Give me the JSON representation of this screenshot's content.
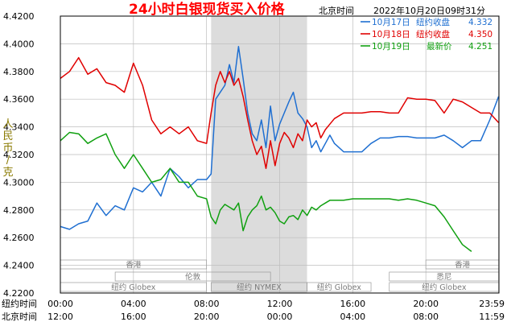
{
  "colors": {
    "series_1017": "#1f6fd1",
    "series_1018": "#e00000",
    "series_1019": "#10a010",
    "axis": "#000000",
    "grid": "#bdbdbd",
    "shade": "#dcdcdc",
    "title": "#ff0000",
    "ylabel": "#8a7a00"
  },
  "header": {
    "title": "24小时白银现货买入价格",
    "timezone": "北京时间",
    "timestamp": "2022年10月20日09时31分"
  },
  "legend": [
    {
      "date": "10月17日",
      "label": "纽约收盘",
      "value": "4.332"
    },
    {
      "date": "10月18日",
      "label": "纽约收盘",
      "value": "4.350"
    },
    {
      "date": "10月19日",
      "label": "最新价",
      "value": "4.251"
    }
  ],
  "sessions": [
    {
      "label": "香港",
      "start": 0,
      "end": 8.0
    },
    {
      "label": "伦敦",
      "start": 3.0,
      "end": 11.5
    },
    {
      "label": "纽约 Globex",
      "start": 0,
      "end": 8.0
    },
    {
      "label": "纽约 NYMEX",
      "start": 8.25,
      "end": 13.5
    },
    {
      "label": "纽约 Globex",
      "start": 13.5,
      "end": 17.0
    },
    {
      "label": "香港",
      "start": 20.0,
      "end": 24.0
    },
    {
      "label": "悉尼",
      "start": 18.0,
      "end": 24.0
    },
    {
      "label": "纽约 Globex",
      "start": 18.0,
      "end": 24.0
    }
  ],
  "chart_data": {
    "type": "line",
    "title": "24小时白银现货买入价格",
    "ylabel": "人民币/克",
    "ylim": [
      4.22,
      4.42
    ],
    "xlim": [
      0,
      24
    ],
    "shaded_range": [
      8.25,
      13.5
    ],
    "yticks": [
      "4.2200",
      "4.2400",
      "4.2600",
      "4.2800",
      "4.3000",
      "4.3200",
      "4.3400",
      "4.3600",
      "4.3800",
      "4.4000",
      "4.4200"
    ],
    "x_ticks": [
      0,
      4,
      8,
      12,
      16,
      20,
      23.983
    ],
    "x_axis_rows": [
      {
        "label": "纽约时间",
        "ticks": [
          "00:00",
          "04:00",
          "08:00",
          "12:00",
          "16:00",
          "20:00",
          "23:59"
        ]
      },
      {
        "label": "北京时间",
        "ticks": [
          "12:00",
          "16:00",
          "20:00",
          "00:00",
          "04:00",
          "08:00",
          "11:59"
        ]
      }
    ],
    "series": [
      {
        "name": "10月17日",
        "color": "#1f6fd1",
        "x": [
          0,
          0.5,
          1,
          1.5,
          2,
          2.5,
          3,
          3.5,
          4,
          4.5,
          5,
          5.5,
          6,
          6.5,
          7,
          7.5,
          8,
          8.25,
          8.5,
          8.75,
          9,
          9.25,
          9.5,
          9.75,
          10,
          10.25,
          10.5,
          10.75,
          11,
          11.25,
          11.5,
          11.75,
          12,
          12.25,
          12.5,
          12.75,
          13,
          13.25,
          13.5,
          13.75,
          14,
          14.25,
          14.5,
          14.75,
          15,
          15.5,
          16,
          16.5,
          17,
          17.5,
          18,
          18.5,
          19,
          19.5,
          20,
          20.5,
          21,
          21.5,
          22,
          22.5,
          23,
          23.5,
          23.983
        ],
        "y": [
          4.268,
          4.266,
          4.27,
          4.272,
          4.285,
          4.276,
          4.283,
          4.28,
          4.296,
          4.293,
          4.3,
          4.29,
          4.31,
          4.304,
          4.296,
          4.302,
          4.302,
          4.306,
          4.36,
          4.365,
          4.37,
          4.385,
          4.372,
          4.398,
          4.375,
          4.35,
          4.335,
          4.33,
          4.345,
          4.325,
          4.355,
          4.33,
          4.342,
          4.35,
          4.358,
          4.365,
          4.35,
          4.346,
          4.34,
          4.325,
          4.33,
          4.322,
          4.328,
          4.334,
          4.328,
          4.322,
          4.322,
          4.322,
          4.328,
          4.332,
          4.332,
          4.333,
          4.333,
          4.332,
          4.332,
          4.332,
          4.334,
          4.33,
          4.325,
          4.33,
          4.33,
          4.345,
          4.362
        ]
      },
      {
        "name": "10月18日",
        "color": "#e00000",
        "x": [
          0,
          0.5,
          1,
          1.5,
          2,
          2.5,
          3,
          3.5,
          4,
          4.5,
          5,
          5.5,
          6,
          6.5,
          7,
          7.5,
          8,
          8.25,
          8.5,
          8.75,
          9,
          9.25,
          9.5,
          9.75,
          10,
          10.25,
          10.5,
          10.75,
          11,
          11.25,
          11.5,
          11.75,
          12,
          12.25,
          12.5,
          12.75,
          13,
          13.25,
          13.5,
          13.75,
          14,
          14.25,
          14.5,
          14.75,
          15,
          15.5,
          16,
          16.5,
          17,
          17.5,
          18,
          18.5,
          19,
          19.5,
          20,
          20.5,
          21,
          21.5,
          22,
          22.5,
          23,
          23.5,
          23.983
        ],
        "y": [
          4.375,
          4.38,
          4.39,
          4.378,
          4.382,
          4.372,
          4.37,
          4.365,
          4.386,
          4.37,
          4.345,
          4.335,
          4.34,
          4.335,
          4.34,
          4.33,
          4.328,
          4.35,
          4.37,
          4.38,
          4.372,
          4.38,
          4.37,
          4.375,
          4.362,
          4.345,
          4.33,
          4.32,
          4.326,
          4.31,
          4.33,
          4.312,
          4.328,
          4.336,
          4.332,
          4.325,
          4.335,
          4.33,
          4.345,
          4.34,
          4.343,
          4.332,
          4.338,
          4.342,
          4.346,
          4.35,
          4.35,
          4.35,
          4.351,
          4.351,
          4.35,
          4.35,
          4.361,
          4.36,
          4.36,
          4.359,
          4.35,
          4.36,
          4.358,
          4.354,
          4.35,
          4.35,
          4.343
        ]
      },
      {
        "name": "10月19日",
        "color": "#10a010",
        "x": [
          0,
          0.5,
          1,
          1.5,
          2,
          2.5,
          3,
          3.5,
          4,
          4.5,
          5,
          5.5,
          6,
          6.5,
          7,
          7.5,
          8,
          8.25,
          8.5,
          8.75,
          9,
          9.25,
          9.5,
          9.75,
          10,
          10.25,
          10.5,
          10.75,
          11,
          11.25,
          11.5,
          11.75,
          12,
          12.25,
          12.5,
          12.75,
          13,
          13.25,
          13.5,
          13.75,
          14,
          14.25,
          14.5,
          14.75,
          15,
          15.5,
          16,
          16.5,
          17,
          17.5,
          18,
          18.5,
          19,
          19.5,
          20,
          20.5,
          21,
          21.5,
          22,
          22.5
        ],
        "y": [
          4.33,
          4.336,
          4.335,
          4.328,
          4.332,
          4.335,
          4.32,
          4.31,
          4.32,
          4.31,
          4.3,
          4.302,
          4.31,
          4.3,
          4.3,
          4.29,
          4.288,
          4.275,
          4.27,
          4.28,
          4.284,
          4.282,
          4.28,
          4.285,
          4.265,
          4.275,
          4.28,
          4.283,
          4.29,
          4.28,
          4.282,
          4.278,
          4.272,
          4.27,
          4.275,
          4.276,
          4.273,
          4.28,
          4.276,
          4.282,
          4.28,
          4.283,
          4.285,
          4.287,
          4.287,
          4.287,
          4.288,
          4.288,
          4.288,
          4.288,
          4.288,
          4.287,
          4.288,
          4.287,
          4.285,
          4.283,
          4.275,
          4.265,
          4.255,
          4.25
        ]
      }
    ]
  }
}
